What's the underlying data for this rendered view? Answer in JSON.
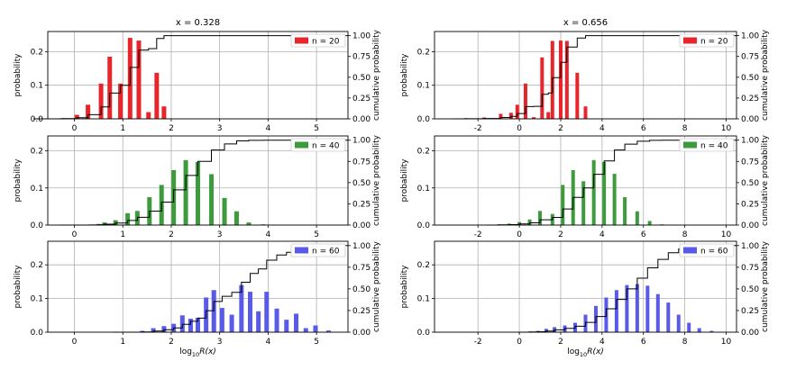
{
  "figure": {
    "y_label": "probability",
    "y2_label": "cumulative probability",
    "x_label_base": "log",
    "x_label_sub": "10",
    "x_label_rest": "R(x)",
    "colors": {
      "red": "#e8252b",
      "green": "#3d9a3d",
      "blue": "#5a5ae8",
      "line": "#000000",
      "grid": "#b0b0b0"
    }
  },
  "chart_data": [
    {
      "type": "bar",
      "column_title": "x = 0.328",
      "legend": "n = 20",
      "color": "#e8252b",
      "xlim": [
        -0.55,
        5.65
      ],
      "ylim": [
        0,
        0.26
      ],
      "y2lim": [
        0,
        1.05
      ],
      "xticks": [
        0,
        1,
        2,
        3,
        4,
        5
      ],
      "yticks": [
        0.0,
        0.1,
        0.2
      ],
      "y2ticks": [
        0.0,
        0.25,
        0.5,
        0.75,
        1.0
      ],
      "ytick_labels": [
        "0.0",
        "0.1",
        "0.2"
      ],
      "y2tick_labels": [
        "0.00",
        "0.25",
        "0.50",
        "0.75",
        "1.00"
      ],
      "show_xlabel": false,
      "x": [
        -0.25,
        0.05,
        0.28,
        0.55,
        0.73,
        0.95,
        1.15,
        1.33,
        1.53,
        1.7,
        1.85
      ],
      "values": [
        0.002,
        0.012,
        0.042,
        0.105,
        0.185,
        0.105,
        0.241,
        0.233,
        0.02,
        0.137,
        0.037
      ]
    },
    {
      "type": "bar",
      "column_title": "x = 0.656",
      "legend": "n = 20",
      "color": "#e8252b",
      "xlim": [
        -4.1,
        10.5
      ],
      "ylim": [
        0,
        0.26
      ],
      "y2lim": [
        0,
        1.05
      ],
      "xticks": [
        -2,
        0,
        2,
        4,
        6,
        8,
        10
      ],
      "yticks": [
        0.0,
        0.1,
        0.2
      ],
      "y2ticks": [
        0.0,
        0.25,
        0.5,
        0.75,
        1.0
      ],
      "ytick_labels": [
        "0.0",
        "0.1",
        "0.2"
      ],
      "y2tick_labels": [
        "0.00",
        "0.25",
        "0.50",
        "0.75",
        "1.00"
      ],
      "show_xlabel": false,
      "x": [
        -2.6,
        -1.7,
        -0.9,
        -0.4,
        -0.1,
        0.3,
        0.7,
        1.1,
        1.4,
        1.6,
        2.0,
        2.3,
        2.8,
        3.2
      ],
      "values": [
        0.002,
        0.004,
        0.015,
        0.018,
        0.042,
        0.105,
        0.005,
        0.183,
        0.02,
        0.232,
        0.233,
        0.232,
        0.137,
        0.037
      ]
    },
    {
      "type": "bar",
      "column_title": "",
      "legend": "n = 40",
      "color": "#3d9a3d",
      "xlim": [
        -0.55,
        5.65
      ],
      "ylim": [
        0,
        0.24
      ],
      "y2lim": [
        0,
        1.05
      ],
      "xticks": [
        0,
        1,
        2,
        3,
        4,
        5
      ],
      "yticks": [
        0.0,
        0.1,
        0.2
      ],
      "y2ticks": [
        0.0,
        0.25,
        0.5,
        0.75,
        1.0
      ],
      "ytick_labels": [
        "0.0",
        "0.1",
        "0.2"
      ],
      "y2tick_labels": [
        "0.00",
        "0.25",
        "0.50",
        "0.75",
        "1.00"
      ],
      "show_xlabel": false,
      "x": [
        0.3,
        0.5,
        0.62,
        0.85,
        1.1,
        1.3,
        1.55,
        1.8,
        2.05,
        2.3,
        2.55,
        2.83,
        3.1,
        3.35,
        3.6,
        3.9
      ],
      "values": [
        0.001,
        0.003,
        0.007,
        0.013,
        0.032,
        0.038,
        0.075,
        0.108,
        0.148,
        0.175,
        0.17,
        0.137,
        0.073,
        0.037,
        0.007,
        0.002
      ]
    },
    {
      "type": "bar",
      "column_title": "",
      "legend": "n = 40",
      "color": "#3d9a3d",
      "xlim": [
        -4.1,
        10.5
      ],
      "ylim": [
        0,
        0.24
      ],
      "y2lim": [
        0,
        1.05
      ],
      "xticks": [
        -2,
        0,
        2,
        4,
        6,
        8,
        10
      ],
      "yticks": [
        0.0,
        0.1,
        0.2
      ],
      "y2ticks": [
        0.0,
        0.25,
        0.5,
        0.75,
        1.0
      ],
      "ytick_labels": [
        "0.0",
        "0.1",
        "0.2"
      ],
      "y2tick_labels": [
        "0.00",
        "0.25",
        "0.50",
        "0.75",
        "1.00"
      ],
      "show_xlabel": false,
      "x": [
        -1.0,
        -0.5,
        0.0,
        0.5,
        1.0,
        1.6,
        2.1,
        2.6,
        3.1,
        3.6,
        4.1,
        4.6,
        5.1,
        5.7,
        6.3,
        6.9
      ],
      "values": [
        0.002,
        0.004,
        0.008,
        0.015,
        0.038,
        0.03,
        0.108,
        0.148,
        0.118,
        0.175,
        0.17,
        0.138,
        0.075,
        0.037,
        0.011,
        0.002
      ]
    },
    {
      "type": "bar",
      "column_title": "",
      "legend": "n = 60",
      "color": "#5a5ae8",
      "xlim": [
        -0.55,
        5.65
      ],
      "ylim": [
        0,
        0.27
      ],
      "y2lim": [
        0,
        1.05
      ],
      "xticks": [
        0,
        1,
        2,
        3,
        4,
        5
      ],
      "yticks": [
        0.0,
        0.1,
        0.2
      ],
      "y2ticks": [
        0.0,
        0.25,
        0.5,
        0.75,
        1.0
      ],
      "ytick_labels": [
        "0.0",
        "0.1",
        "0.2"
      ],
      "y2tick_labels": [
        "0.00",
        "0.25",
        "0.50",
        "0.75",
        "1.00"
      ],
      "show_xlabel": true,
      "x": [
        1.4,
        1.63,
        1.85,
        2.05,
        2.23,
        2.4,
        2.55,
        2.72,
        2.88,
        3.05,
        3.25,
        3.45,
        3.63,
        3.8,
        3.97,
        4.18,
        4.38,
        4.58,
        4.78,
        4.98,
        5.25
      ],
      "values": [
        0.004,
        0.012,
        0.018,
        0.025,
        0.05,
        0.04,
        0.043,
        0.103,
        0.125,
        0.072,
        0.052,
        0.14,
        0.12,
        0.062,
        0.12,
        0.07,
        0.037,
        0.055,
        0.012,
        0.02,
        0.005
      ]
    },
    {
      "type": "bar",
      "column_title": "",
      "legend": "n = 60",
      "color": "#5a5ae8",
      "xlim": [
        -4.1,
        10.5
      ],
      "ylim": [
        0,
        0.27
      ],
      "y2lim": [
        0,
        1.05
      ],
      "xticks": [
        -2,
        0,
        2,
        4,
        6,
        8,
        10
      ],
      "yticks": [
        0.0,
        0.1,
        0.2
      ],
      "y2ticks": [
        0.0,
        0.25,
        0.5,
        0.75,
        1.0
      ],
      "ytick_labels": [
        "0.0",
        "0.1",
        "0.2"
      ],
      "y2tick_labels": [
        "0.00",
        "0.25",
        "0.50",
        "0.75",
        "1.00"
      ],
      "show_xlabel": true,
      "x": [
        0.5,
        0.9,
        1.3,
        1.7,
        2.2,
        2.7,
        3.2,
        3.7,
        4.2,
        4.7,
        5.2,
        5.7,
        6.2,
        6.7,
        7.2,
        7.7,
        8.2,
        8.7,
        9.3
      ],
      "values": [
        0.002,
        0.004,
        0.01,
        0.015,
        0.02,
        0.028,
        0.052,
        0.078,
        0.103,
        0.125,
        0.14,
        0.143,
        0.138,
        0.113,
        0.088,
        0.052,
        0.028,
        0.012,
        0.004
      ]
    }
  ]
}
